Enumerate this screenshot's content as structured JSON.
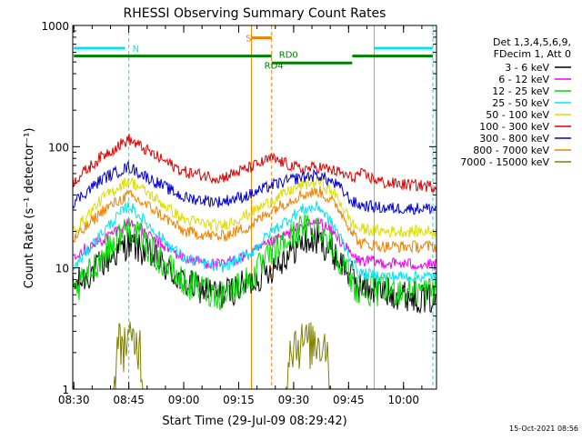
{
  "chart_data": {
    "type": "line",
    "title": "RHESSI Observing Summary Count Rates",
    "xlabel": "Start Time (29-Jul-09 08:29:42)",
    "ylabel": "Count Rate (s⁻¹ detector⁻¹)",
    "yscale": "log",
    "ylim": [
      1,
      1000
    ],
    "xlim": [
      "08:29:42",
      "10:09:00"
    ],
    "x_ticks": [
      "08:30",
      "08:45",
      "09:00",
      "09:15",
      "09:30",
      "09:45",
      "10:00"
    ],
    "y_ticks": [
      "1",
      "10",
      "100",
      "1000"
    ],
    "grid": false,
    "legend_position": "top-right",
    "legend_header": [
      "Det 1,3,4,5,6,9,",
      "FDecim 1, Att 0"
    ],
    "timestamp": "15-Oct-2021 08:56",
    "annotations": {
      "markers": [
        {
          "label": "N",
          "time": "08:45",
          "color": "#00e5ee"
        },
        {
          "label": "S",
          "time": "09:19",
          "color": "#f08000"
        },
        {
          "label": "RD4",
          "time": "09:21",
          "color": "#008000"
        },
        {
          "label": "RD0",
          "time": "09:25",
          "color": "#008000"
        }
      ],
      "vertical_lines": [
        {
          "time": "08:45",
          "color": "#00e5ee",
          "style": "dashed"
        },
        {
          "time": "09:18.5",
          "color": "#f08000",
          "style": "solid"
        },
        {
          "time": "09:24",
          "color": "#f08000",
          "style": "dashed"
        },
        {
          "time": "09:52",
          "color": "#00e5ee",
          "style": "solid"
        },
        {
          "time": "10:08",
          "color": "#00e5ee",
          "style": "dashed"
        }
      ],
      "horizontal_segments": [
        {
          "color": "#00e5ee",
          "from": "08:30",
          "to": "08:44",
          "value": 650
        },
        {
          "color": "#00e5ee",
          "from": "09:52",
          "to": "10:08",
          "value": 650
        },
        {
          "color": "#f08000",
          "from": "09:18.5",
          "to": "09:24",
          "value": 790
        },
        {
          "color": "#008000",
          "from": "08:30",
          "to": "09:24",
          "value": 560
        },
        {
          "color": "#008000",
          "from": "09:24",
          "to": "09:46",
          "value": 490
        },
        {
          "color": "#008000",
          "from": "09:46",
          "to": "10:08",
          "value": 560
        }
      ]
    },
    "series": [
      {
        "name": "3 - 6 keV",
        "color": "#000000",
        "x": [
          "08:30",
          "08:38",
          "08:45",
          "08:52",
          "09:00",
          "09:10",
          "09:18",
          "09:24",
          "09:32",
          "09:37",
          "09:42",
          "09:46",
          "09:48",
          "09:55",
          "10:08"
        ],
        "values": [
          7,
          11,
          16,
          12,
          7.5,
          6,
          7.5,
          10,
          16,
          17,
          12,
          8.5,
          7,
          6.3,
          5.5
        ]
      },
      {
        "name": "6 - 12 keV",
        "color": "#ee00ee",
        "x": [
          "08:30",
          "08:38",
          "08:45",
          "08:52",
          "09:00",
          "09:10",
          "09:18",
          "09:24",
          "09:32",
          "09:37",
          "09:42",
          "09:46",
          "09:48",
          "09:55",
          "10:08"
        ],
        "values": [
          13,
          17,
          24,
          17,
          12,
          10.5,
          13,
          16,
          22,
          24,
          18,
          12.5,
          11.5,
          11,
          10.5
        ]
      },
      {
        "name": "12 - 25 keV",
        "color": "#00dd00",
        "x": [
          "08:30",
          "08:38",
          "08:45",
          "08:52",
          "09:00",
          "09:10",
          "09:18",
          "09:24",
          "09:32",
          "09:37",
          "09:42",
          "09:46",
          "09:48",
          "09:55",
          "10:08"
        ],
        "values": [
          6,
          13,
          22,
          13,
          7.5,
          6,
          8,
          13,
          21,
          22,
          13,
          7.5,
          6.5,
          6.5,
          6.5
        ]
      },
      {
        "name": "25 - 50 keV",
        "color": "#00e5ee",
        "x": [
          "08:30",
          "08:38",
          "08:45",
          "08:52",
          "09:00",
          "09:10",
          "09:18",
          "09:24",
          "09:32",
          "09:37",
          "09:42",
          "09:46",
          "09:48",
          "09:55",
          "10:08"
        ],
        "values": [
          10,
          20,
          33,
          20,
          12,
          10,
          13,
          20,
          30,
          32,
          20,
          11,
          9,
          8.5,
          8.5
        ]
      },
      {
        "name": "50 - 100 keV",
        "color": "#dddd00",
        "x": [
          "08:30",
          "08:38",
          "08:45",
          "08:52",
          "09:00",
          "09:10",
          "09:18",
          "09:24",
          "09:32",
          "09:37",
          "09:42",
          "09:46",
          "09:48",
          "09:55",
          "10:08"
        ],
        "values": [
          20,
          38,
          53,
          38,
          25,
          22,
          28,
          36,
          48,
          52,
          38,
          23,
          21,
          20,
          20
        ]
      },
      {
        "name": "100 - 300 keV",
        "color": "#dd0000",
        "x": [
          "08:30",
          "08:38",
          "08:45",
          "08:52",
          "09:00",
          "09:10",
          "09:18",
          "09:24",
          "09:32",
          "09:37",
          "09:42",
          "09:46",
          "09:48",
          "09:55",
          "10:08"
        ],
        "values": [
          52,
          85,
          115,
          85,
          62,
          55,
          67,
          80,
          65,
          68,
          62,
          55,
          60,
          50,
          47
        ]
      },
      {
        "name": "300 - 800 keV",
        "color": "#0000cc",
        "x": [
          "08:30",
          "08:38",
          "08:45",
          "08:52",
          "09:00",
          "09:10",
          "09:18",
          "09:24",
          "09:32",
          "09:37",
          "09:42",
          "09:46",
          "09:48",
          "09:55",
          "10:08"
        ],
        "values": [
          35,
          55,
          68,
          52,
          38,
          35,
          40,
          48,
          56,
          58,
          48,
          35,
          33,
          31,
          31
        ]
      },
      {
        "name": "800 - 7000 keV",
        "color": "#f08000",
        "x": [
          "08:30",
          "08:38",
          "08:45",
          "08:52",
          "09:00",
          "09:10",
          "09:18",
          "09:24",
          "09:32",
          "09:37",
          "09:42",
          "09:46",
          "09:48",
          "09:55",
          "10:08"
        ],
        "values": [
          17,
          30,
          40,
          30,
          20,
          18,
          22,
          30,
          40,
          43,
          32,
          20,
          16,
          15,
          15
        ]
      },
      {
        "name": "7000 - 15000 keV",
        "color": "#808000",
        "x": [
          "08:30",
          "08:41",
          "08:42",
          "08:48",
          "08:49",
          "09:28",
          "09:29",
          "09:39",
          "09:40",
          "10:08"
        ],
        "values": [
          1,
          1,
          2.5,
          2.5,
          1,
          1,
          2.5,
          2.5,
          1,
          1
        ]
      }
    ]
  }
}
